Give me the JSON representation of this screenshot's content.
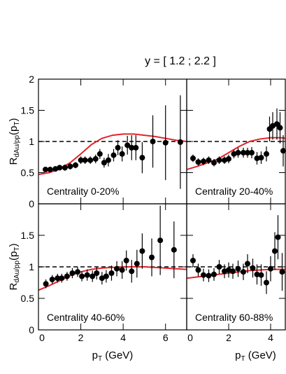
{
  "figure": {
    "title": "y = [ 1.2 ; 2.2 ]",
    "y_label_parts": [
      "R",
      "dAu/pp",
      "(p",
      "T",
      ")"
    ],
    "x_label_parts": [
      "p",
      "T",
      " (GeV)"
    ],
    "reference_line": 1,
    "reference_color": "#000000"
  },
  "chart_data": [
    {
      "type": "scatter",
      "label": "Centrality 0-20%",
      "xlim": [
        0,
        7
      ],
      "ylim": [
        0,
        2
      ],
      "xticks": [
        0,
        2,
        4,
        6
      ],
      "yticks": [
        0,
        0.5,
        1,
        1.5,
        2
      ],
      "show_x_labels": false,
      "show_y_labels": true,
      "points": {
        "color": "#000000",
        "x": [
          0.33,
          0.55,
          0.8,
          1.0,
          1.25,
          1.5,
          1.75,
          2.0,
          2.2,
          2.45,
          2.7,
          2.9,
          3.1,
          3.3,
          3.55,
          3.75,
          3.95,
          4.2,
          4.4,
          4.6,
          4.9,
          5.4,
          6.0,
          6.7
        ],
        "values": [
          0.55,
          0.55,
          0.56,
          0.58,
          0.58,
          0.6,
          0.62,
          0.7,
          0.7,
          0.7,
          0.72,
          0.8,
          0.66,
          0.7,
          0.78,
          0.9,
          0.8,
          0.94,
          0.9,
          0.9,
          0.74,
          1.0,
          0.98,
          0.99
        ],
        "errors": [
          0.04,
          0.04,
          0.04,
          0.04,
          0.05,
          0.05,
          0.05,
          0.06,
          0.06,
          0.06,
          0.07,
          0.08,
          0.08,
          0.1,
          0.1,
          0.12,
          0.12,
          0.15,
          0.2,
          0.2,
          0.25,
          0.42,
          0.6,
          0.75
        ]
      },
      "curve": {
        "color": "#e3232a",
        "x": [
          0,
          0.5,
          1,
          1.5,
          2,
          2.5,
          3,
          3.5,
          4,
          4.5,
          5,
          5.5,
          6,
          6.5,
          7
        ],
        "values": [
          0.47,
          0.5,
          0.56,
          0.66,
          0.8,
          0.95,
          1.05,
          1.1,
          1.12,
          1.12,
          1.1,
          1.08,
          1.05,
          1.02,
          1.0
        ]
      }
    },
    {
      "type": "scatter",
      "label": "Centrality 20-40%",
      "xlim": [
        0,
        4.7
      ],
      "ylim": [
        0,
        2
      ],
      "xticks": [
        0,
        2,
        4
      ],
      "yticks": [
        0,
        0.5,
        1,
        1.5,
        2
      ],
      "show_x_labels": false,
      "show_y_labels": false,
      "points": {
        "color": "#000000",
        "x": [
          0.3,
          0.55,
          0.8,
          1.05,
          1.3,
          1.55,
          1.8,
          2.0,
          2.25,
          2.45,
          2.7,
          2.9,
          3.1,
          3.35,
          3.55,
          3.8,
          3.95,
          4.1,
          4.3,
          4.45,
          4.6
        ],
        "values": [
          0.73,
          0.67,
          0.68,
          0.7,
          0.66,
          0.7,
          0.7,
          0.72,
          0.8,
          0.82,
          0.82,
          0.82,
          0.82,
          0.73,
          0.74,
          0.8,
          1.2,
          1.25,
          1.28,
          1.22,
          0.85
        ],
        "errors": [
          0.06,
          0.06,
          0.06,
          0.06,
          0.06,
          0.06,
          0.06,
          0.07,
          0.07,
          0.08,
          0.08,
          0.08,
          0.09,
          0.1,
          0.1,
          0.12,
          0.2,
          0.22,
          0.25,
          0.25,
          0.25
        ]
      },
      "curve": {
        "color": "#e3232a",
        "x": [
          0,
          0.5,
          1,
          1.5,
          2,
          2.5,
          3,
          3.5,
          4,
          4.5,
          4.7
        ],
        "values": [
          0.55,
          0.6,
          0.66,
          0.72,
          0.82,
          0.92,
          1.0,
          1.04,
          1.06,
          1.06,
          1.05
        ]
      }
    },
    {
      "type": "scatter",
      "label": "Centrality 40-60%",
      "xlim": [
        0,
        7
      ],
      "ylim": [
        0,
        2
      ],
      "xticks": [
        0,
        2,
        4,
        6
      ],
      "yticks": [
        0,
        0.5,
        1,
        1.5
      ],
      "show_x_labels": true,
      "show_y_labels": true,
      "points": {
        "color": "#000000",
        "x": [
          0.35,
          0.65,
          0.9,
          1.1,
          1.35,
          1.6,
          1.85,
          2.05,
          2.3,
          2.55,
          2.75,
          3.0,
          3.2,
          3.45,
          3.7,
          3.95,
          4.15,
          4.4,
          4.65,
          4.9,
          5.35,
          5.75,
          6.4
        ],
        "values": [
          0.73,
          0.8,
          0.82,
          0.82,
          0.85,
          0.9,
          0.92,
          0.85,
          0.87,
          0.85,
          0.9,
          0.82,
          0.85,
          0.9,
          0.97,
          0.95,
          1.1,
          0.93,
          1.05,
          1.25,
          1.15,
          1.42,
          1.27
        ],
        "errors": [
          0.07,
          0.07,
          0.07,
          0.07,
          0.07,
          0.08,
          0.08,
          0.08,
          0.09,
          0.09,
          0.1,
          0.1,
          0.1,
          0.12,
          0.12,
          0.14,
          0.16,
          0.18,
          0.22,
          0.28,
          0.3,
          0.55,
          0.45
        ]
      },
      "curve": {
        "color": "#e3232a",
        "x": [
          0,
          0.5,
          1,
          1.5,
          2,
          2.5,
          3,
          3.5,
          4,
          4.5,
          5,
          5.5,
          6,
          6.5,
          7
        ],
        "values": [
          0.63,
          0.7,
          0.78,
          0.86,
          0.92,
          0.96,
          0.98,
          0.99,
          1.0,
          1.0,
          1.0,
          0.99,
          0.98,
          0.97,
          0.96
        ]
      }
    },
    {
      "type": "scatter",
      "label": "Centrality 60-88%",
      "xlim": [
        0,
        4.7
      ],
      "ylim": [
        0,
        2
      ],
      "xticks": [
        0,
        2,
        4
      ],
      "yticks": [
        0,
        0.5,
        1,
        1.5,
        2
      ],
      "show_x_labels": true,
      "show_y_labels": false,
      "points": {
        "color": "#000000",
        "x": [
          0.3,
          0.55,
          0.8,
          1.05,
          1.3,
          1.55,
          1.8,
          2.0,
          2.2,
          2.45,
          2.7,
          2.9,
          3.15,
          3.35,
          3.55,
          3.8,
          4.0,
          4.2,
          4.35,
          4.55
        ],
        "values": [
          1.1,
          0.95,
          0.87,
          0.86,
          0.88,
          1.0,
          0.93,
          0.95,
          0.93,
          0.97,
          0.92,
          1.05,
          0.98,
          0.88,
          0.87,
          0.75,
          0.97,
          1.25,
          1.47,
          0.92
        ],
        "errors": [
          0.1,
          0.1,
          0.1,
          0.1,
          0.1,
          0.11,
          0.11,
          0.12,
          0.12,
          0.13,
          0.13,
          0.15,
          0.15,
          0.16,
          0.17,
          0.18,
          0.2,
          0.3,
          0.35,
          0.3
        ]
      },
      "curve": {
        "color": "#e3232a",
        "x": [
          0,
          1,
          2,
          3,
          4,
          4.7
        ],
        "values": [
          0.82,
          0.86,
          0.9,
          0.94,
          0.96,
          0.96
        ]
      }
    }
  ]
}
